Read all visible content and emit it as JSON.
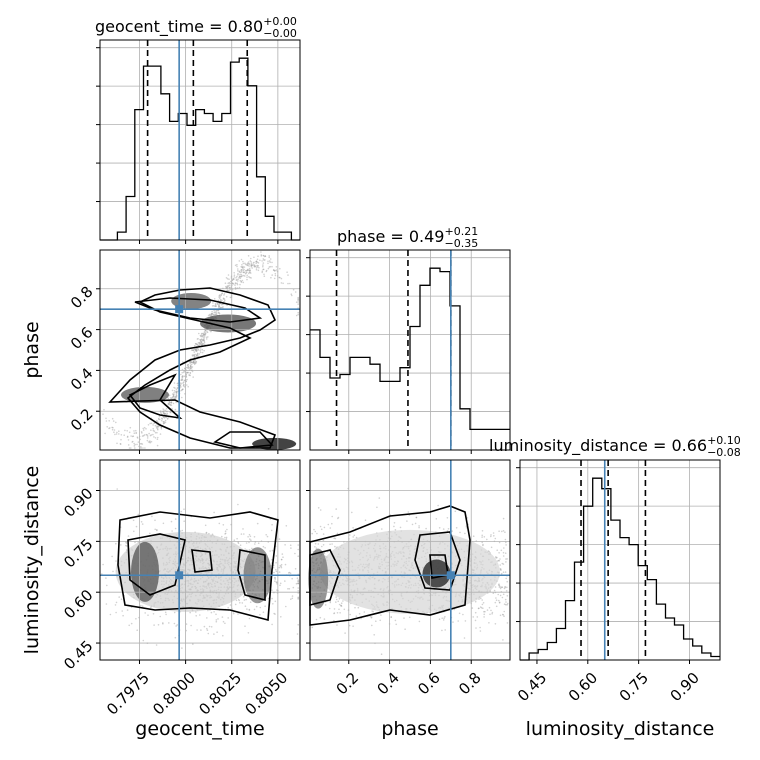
{
  "chart_data": {
    "type": "corner",
    "parameters": [
      {
        "key": "geocent_time",
        "label": "geocent_time",
        "range": [
          0.79536,
          0.8062
        ],
        "ticks": [
          0.7975,
          0.8,
          0.8025,
          0.805
        ],
        "tick_labels": [
          "0.7975",
          "0.8000",
          "0.8025",
          "0.8050"
        ],
        "truth": 0.79965
      },
      {
        "key": "phase",
        "label": "phase",
        "range": [
          0.01,
          0.99
        ],
        "ticks": [
          0.2,
          0.4,
          0.6,
          0.8
        ],
        "tick_labels": [
          "0.2",
          "0.4",
          "0.6",
          "0.8"
        ],
        "truth": 0.7
      },
      {
        "key": "luminosity_distance",
        "label": "luminosity_distance",
        "range": [
          0.4,
          0.99
        ],
        "ticks": [
          0.45,
          0.6,
          0.75,
          0.9
        ],
        "tick_labels": [
          "0.45",
          "0.60",
          "0.75",
          "0.90"
        ],
        "truth": 0.65
      }
    ],
    "titles": [
      {
        "param": "geocent_time",
        "text": "geocent_time = 0.80",
        "sup": "+0.00",
        "sub": "−0.00"
      },
      {
        "param": "phase",
        "text": "phase = 0.49",
        "sup": "+0.21",
        "sub": "−0.35"
      },
      {
        "param": "luminosity_distance",
        "text": "luminosity_distance = 0.66",
        "sup": "+0.10",
        "sub": "−0.08"
      }
    ],
    "histograms": [
      {
        "param": "geocent_time",
        "bins": [
          0.79536,
          0.806205
        ],
        "counts": [
          0,
          0,
          0.2,
          1.1,
          3.3,
          4.4,
          4.4,
          3.7,
          3.0,
          3.2,
          2.9,
          3.3,
          3.2,
          3.0,
          3.2,
          4.5,
          4.6,
          3.9,
          1.6,
          0.6,
          0.2,
          0.2,
          0
        ],
        "quantiles": [
          0.79794,
          0.80042,
          0.80334
        ]
      },
      {
        "param": "phase",
        "bins": [
          0.01,
          0.99
        ],
        "counts": [
          3.5,
          2.7,
          2.1,
          2.2,
          2.7,
          2.7,
          2.5,
          2.0,
          2.0,
          2.4,
          3.6,
          4.8,
          5.3,
          5.2,
          4.2,
          1.2,
          0.6,
          0.6,
          0.6,
          0.6
        ],
        "quantiles": [
          0.14,
          0.49,
          0.7
        ]
      },
      {
        "param": "luminosity_distance",
        "bins": [
          0.4,
          0.99
        ],
        "counts": [
          0,
          0.2,
          0.3,
          0.5,
          0.9,
          1.7,
          2.8,
          4.4,
          5.2,
          4.9,
          4.0,
          3.5,
          3.3,
          2.7,
          2.3,
          1.6,
          1.2,
          1.0,
          0.6,
          0.4,
          0.2,
          0.1
        ],
        "quantiles": [
          0.58,
          0.66,
          0.77
        ]
      }
    ],
    "grid": true
  }
}
